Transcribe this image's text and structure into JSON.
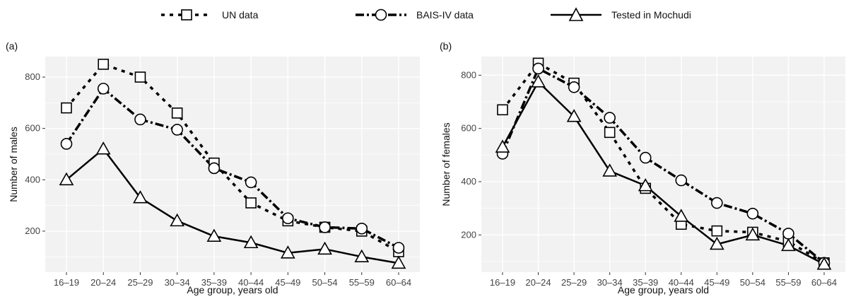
{
  "legend": [
    {
      "key": "un",
      "label": "UN data"
    },
    {
      "key": "bais",
      "label": "BAIS-IV data"
    },
    {
      "key": "mochudi",
      "label": "Tested in Mochudi"
    }
  ],
  "styles": {
    "panel_bg": "#f2f2f2",
    "grid": "#ffffff",
    "line": "#000000",
    "marker_fill": "#ffffff"
  },
  "chart_data": [
    {
      "type": "line",
      "panel_label": "(a)",
      "xlabel": "Age group, years old",
      "ylabel": "Number of males",
      "categories": [
        "16–19",
        "20–24",
        "25–29",
        "30–34",
        "35–39",
        "40–44",
        "45–49",
        "50–54",
        "55–59",
        "60–64"
      ],
      "ylim": [
        40,
        880
      ],
      "yticks": [
        200,
        400,
        600,
        800
      ],
      "grid": true,
      "series": [
        {
          "key": "un",
          "name": "UN data",
          "values": [
            680,
            850,
            800,
            660,
            465,
            310,
            240,
            215,
            200,
            120
          ]
        },
        {
          "key": "bais",
          "name": "BAIS-IV data",
          "values": [
            540,
            755,
            635,
            595,
            445,
            390,
            250,
            215,
            210,
            135
          ]
        },
        {
          "key": "mochudi",
          "name": "Tested in Mochudi",
          "values": [
            400,
            520,
            330,
            240,
            180,
            155,
            115,
            130,
            100,
            75
          ]
        }
      ]
    },
    {
      "type": "line",
      "panel_label": "(b)",
      "xlabel": "Age group, years old",
      "ylabel": "Number of females",
      "categories": [
        "16–19",
        "20–24",
        "25–29",
        "30–34",
        "35–39",
        "40–44",
        "45–49",
        "50–54",
        "55–59",
        "60–64"
      ],
      "ylim": [
        60,
        870
      ],
      "yticks": [
        200,
        400,
        600,
        800
      ],
      "grid": true,
      "series": [
        {
          "key": "un",
          "name": "UN data",
          "values": [
            670,
            845,
            770,
            585,
            375,
            240,
            215,
            210,
            175,
            95
          ]
        },
        {
          "key": "bais",
          "name": "BAIS-IV data",
          "values": [
            505,
            825,
            755,
            640,
            490,
            405,
            320,
            280,
            205,
            95
          ]
        },
        {
          "key": "mochudi",
          "name": "Tested in Mochudi",
          "values": [
            530,
            775,
            645,
            440,
            385,
            270,
            165,
            200,
            160,
            90
          ]
        }
      ]
    }
  ]
}
